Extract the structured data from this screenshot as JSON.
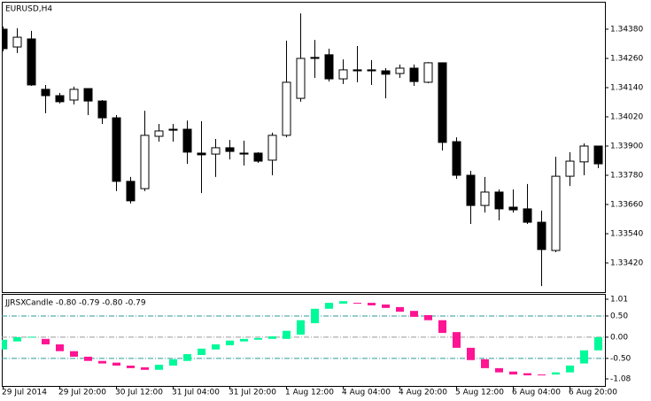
{
  "chart_data": [
    {
      "type": "candlestick",
      "title": "EURUSD,H4",
      "categories": [
        "29 Jul 2014",
        null,
        null,
        null,
        "29 Jul 20:00",
        null,
        null,
        null,
        "30 Jul 12:00",
        null,
        null,
        null,
        "31 Jul 04:00",
        null,
        null,
        null,
        "31 Jul 20:00",
        null,
        null,
        null,
        "1 Aug 12:00",
        null,
        null,
        null,
        "4 Aug 04:00",
        null,
        null,
        null,
        "4 Aug 20:00",
        null,
        null,
        null,
        "5 Aug 12:00",
        null,
        null,
        null,
        "6 Aug 04:00",
        null,
        null,
        null,
        "6 Aug 20:00",
        null,
        null
      ],
      "open": [
        1.3438,
        1.34307,
        1.3434,
        1.34133,
        1.34107,
        1.34089,
        1.34136,
        1.34085,
        1.34016,
        1.33755,
        1.33725,
        1.3394,
        1.33969,
        1.33969,
        1.33871,
        1.33867,
        1.33893,
        1.33871,
        1.33871,
        1.33842,
        1.33944,
        1.34096,
        1.34264,
        1.34275,
        1.34176,
        1.34213,
        1.34213,
        1.34209,
        1.34198,
        1.3422,
        1.34162,
        1.34242,
        1.33918,
        1.3378,
        1.33656,
        1.33711,
        1.33649,
        1.33642,
        1.33587,
        1.33471,
        1.33776,
        1.33835,
        1.339
      ],
      "high": [
        1.34391,
        1.34384,
        1.34373,
        1.34151,
        1.34118,
        1.34144,
        1.34136,
        1.34089,
        1.34027,
        1.33773,
        1.34045,
        1.33991,
        1.33991,
        1.34005,
        1.34002,
        1.33929,
        1.33925,
        1.33922,
        1.33875,
        1.33955,
        1.34333,
        1.34445,
        1.34336,
        1.343,
        1.34256,
        1.34311,
        1.34253,
        1.3422,
        1.34235,
        1.34235,
        1.34245,
        1.34242,
        1.33936,
        1.33798,
        1.33773,
        1.33722,
        1.33722,
        1.33744,
        1.33635,
        1.33856,
        1.33875,
        1.33911,
        1.339
      ],
      "low": [
        1.34289,
        1.34282,
        1.34147,
        1.34035,
        1.34075,
        1.34071,
        1.34027,
        1.33991,
        1.33715,
        1.33664,
        1.33715,
        1.33918,
        1.33918,
        1.33827,
        1.33707,
        1.33773,
        1.33845,
        1.3382,
        1.33831,
        1.3378,
        1.33936,
        1.34082,
        1.3418,
        1.34165,
        1.34155,
        1.34162,
        1.34151,
        1.34096,
        1.3418,
        1.34147,
        1.34158,
        1.33882,
        1.33765,
        1.3358,
        1.33627,
        1.33595,
        1.33627,
        1.3358,
        1.33325,
        1.33464,
        1.33736,
        1.3378,
        1.33809
      ],
      "close": [
        1.343,
        1.34347,
        1.34151,
        1.34107,
        1.34082,
        1.34133,
        1.34085,
        1.34016,
        1.33755,
        1.33675,
        1.33944,
        1.33962,
        1.33965,
        1.33875,
        1.33864,
        1.33893,
        1.33878,
        1.33867,
        1.33838,
        1.33944,
        1.34162,
        1.3426,
        1.3426,
        1.34176,
        1.34213,
        1.34209,
        1.34209,
        1.34195,
        1.3422,
        1.34165,
        1.34242,
        1.33915,
        1.3378,
        1.33656,
        1.33711,
        1.33642,
        1.33638,
        1.33587,
        1.33475,
        1.33776,
        1.33838,
        1.339,
        1.33827
      ],
      "up_color": "#ffffff",
      "down_color": "#000000",
      "wick_color": "#000000",
      "ylim": [
        1.333,
        1.34489
      ],
      "yticks": [
        {
          "value": 1.3438,
          "label": "1.34380"
        },
        {
          "value": 1.3426,
          "label": "1.34260"
        },
        {
          "value": 1.3414,
          "label": "1.34140"
        },
        {
          "value": 1.3402,
          "label": "1.34020"
        },
        {
          "value": 1.339,
          "label": "1.33900"
        },
        {
          "value": 1.3378,
          "label": "1.33780"
        },
        {
          "value": 1.3366,
          "label": "1.33660"
        },
        {
          "value": 1.3354,
          "label": "1.33540"
        },
        {
          "value": 1.3342,
          "label": "1.33420"
        }
      ]
    },
    {
      "type": "candlestick",
      "title": "JJRSXCandle -0.80 -0.79 -0.80 -0.79",
      "open": [
        -0.29,
        -0.1,
        -0.01,
        -0.04,
        -0.17,
        -0.33,
        -0.46,
        -0.56,
        -0.6,
        -0.67,
        -0.71,
        -0.77,
        -0.67,
        -0.56,
        -0.42,
        -0.29,
        -0.19,
        -0.1,
        -0.06,
        -0.04,
        -0.04,
        0.06,
        0.33,
        0.67,
        0.79,
        0.81,
        0.81,
        0.77,
        0.71,
        0.62,
        0.52,
        0.4,
        0.12,
        -0.25,
        -0.52,
        -0.73,
        -0.81,
        -0.85,
        -0.88,
        -0.88,
        -0.83,
        -0.62,
        -0.31
      ],
      "close": [
        -0.06,
        0.0,
        0.01,
        -0.17,
        -0.33,
        -0.46,
        -0.56,
        -0.62,
        -0.67,
        -0.73,
        -0.77,
        -0.65,
        -0.52,
        -0.4,
        -0.27,
        -0.17,
        -0.08,
        -0.04,
        -0.02,
        0.02,
        0.15,
        0.4,
        0.67,
        0.81,
        0.85,
        0.79,
        0.75,
        0.69,
        0.6,
        0.48,
        0.4,
        0.1,
        -0.25,
        -0.54,
        -0.73,
        -0.83,
        -0.88,
        -0.9,
        -0.9,
        -0.83,
        -0.67,
        -0.31,
        0.0
      ],
      "up_color": "#00fa9a",
      "down_color": "#ff1493",
      "level_lines": [
        0.5,
        0,
        -0.5
      ],
      "level_color": "#2f9a9a",
      "ylim": [
        -1.15,
        1.0
      ],
      "yticks": [
        1.01,
        {
          "value": 0.5,
          "label": "0.50"
        },
        {
          "value": 0,
          "label": "0.00"
        },
        {
          "value": -0.5,
          "label": "-0.50"
        },
        -1.08
      ]
    }
  ]
}
